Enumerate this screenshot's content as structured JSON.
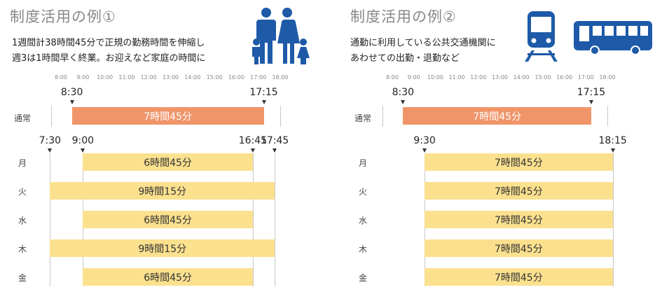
{
  "left": {
    "title": "制度活用の例①",
    "desc_line1": "1週間計38時間45分で正規の勤務時間を伸縮し",
    "desc_line2": "週3は1時間早く終業。お迎えなど家庭の時間に",
    "icon": "family-icon",
    "ticks": [
      "8:00",
      "9:00",
      "10:00",
      "11:00",
      "12:00",
      "13:00",
      "14:00",
      "15:00",
      "16:00",
      "17:00",
      "18:00"
    ],
    "normal": {
      "label": "通常",
      "start": "8:30",
      "end": "17:15",
      "duration": "7時間45分"
    },
    "shift_times": [
      "7:30",
      "9:00",
      "16:45",
      "17:45"
    ],
    "rows": [
      {
        "day": "月",
        "duration": "6時間45分"
      },
      {
        "day": "火",
        "duration": "9時間15分"
      },
      {
        "day": "水",
        "duration": "6時間45分"
      },
      {
        "day": "木",
        "duration": "9時間15分"
      },
      {
        "day": "金",
        "duration": "6時間45分"
      }
    ]
  },
  "right": {
    "title": "制度活用の例②",
    "desc_line1": "通勤に利用している公共交通機関に",
    "desc_line2": "あわせての出勤・退勤など",
    "icons": [
      "train-icon",
      "bus-icon"
    ],
    "ticks": [
      "8:00",
      "9:00",
      "10:00",
      "11:00",
      "12:00",
      "13:00",
      "14:00",
      "15:00",
      "16:00",
      "17:00",
      "18:00"
    ],
    "normal": {
      "label": "通常",
      "start": "8:30",
      "end": "17:15",
      "duration": "7時間45分"
    },
    "shift_times": [
      "9:30",
      "18:15"
    ],
    "rows": [
      {
        "day": "月",
        "duration": "7時間45分"
      },
      {
        "day": "火",
        "duration": "7時間45分"
      },
      {
        "day": "水",
        "duration": "7時間45分"
      },
      {
        "day": "木",
        "duration": "7時間45分"
      },
      {
        "day": "金",
        "duration": "7時間45分"
      }
    ]
  },
  "colors": {
    "normal_bar": "#f0956a",
    "shift_bar": "#fbe08e",
    "icon": "#1e5aa8"
  }
}
